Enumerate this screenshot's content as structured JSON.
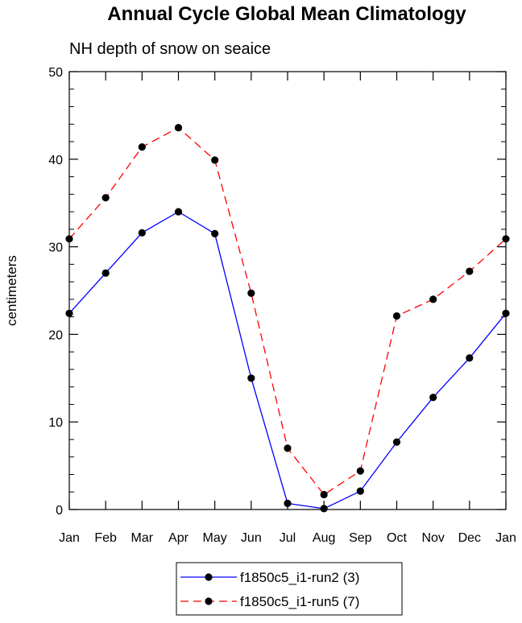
{
  "chart_data": {
    "type": "line",
    "title": "Annual Cycle Global Mean Climatology",
    "subtitle": "NH depth of snow on seaice",
    "xlabel": "",
    "ylabel": "centimeters",
    "categories": [
      "Jan",
      "Feb",
      "Mar",
      "Apr",
      "May",
      "Jun",
      "Jul",
      "Aug",
      "Sep",
      "Oct",
      "Nov",
      "Dec",
      "Jan"
    ],
    "ylim": [
      0,
      50
    ],
    "yticks": [
      0,
      10,
      20,
      30,
      40,
      50
    ],
    "series": [
      {
        "name": "f1850c5_i1-run2 (3)",
        "color": "#0000ff",
        "dash": "solid",
        "values": [
          22.4,
          27.0,
          31.6,
          34.0,
          31.5,
          15.0,
          0.7,
          0.1,
          2.1,
          7.7,
          12.8,
          17.3,
          22.4
        ]
      },
      {
        "name": "f1850c5_i1-run5 (7)",
        "color": "#ff0000",
        "dash": "dashed",
        "values": [
          30.9,
          35.6,
          41.4,
          43.6,
          39.9,
          24.7,
          7.0,
          1.7,
          4.4,
          22.1,
          24.0,
          27.2,
          30.9
        ]
      }
    ],
    "legend": "bottom",
    "marker_color": "#000000"
  }
}
